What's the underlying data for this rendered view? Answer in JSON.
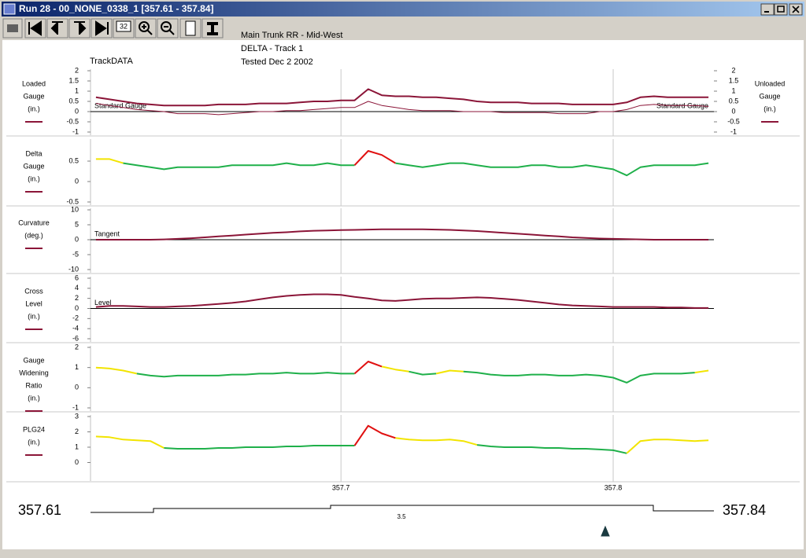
{
  "window": {
    "title": "Run 28 - 00_NONE_0338_1 [357.61 - 357.84]",
    "toolbar_label": "32"
  },
  "header": {
    "brand": "TrackDATA",
    "lines": [
      "Main Trunk RR - Mid-West",
      "DELTA - Track 1",
      "Tested Dec 2 2002"
    ]
  },
  "chart_data": [
    {
      "type": "line",
      "x": [
        357.61,
        357.615,
        357.62,
        357.625,
        357.63,
        357.635,
        357.64,
        357.645,
        357.65,
        357.655,
        357.66,
        357.665,
        357.67,
        357.675,
        357.68,
        357.685,
        357.69,
        357.695,
        357.7,
        357.705,
        357.71,
        357.715,
        357.72,
        357.725,
        357.73,
        357.735,
        357.74,
        357.745,
        357.75,
        357.755,
        357.76,
        357.765,
        357.77,
        357.775,
        357.78,
        357.785,
        357.79,
        357.795,
        357.8,
        357.805,
        357.81,
        357.815,
        357.82,
        357.825,
        357.83,
        357.835
      ],
      "xlim": [
        357.608,
        357.837
      ],
      "xticks": [
        357.7,
        357.8
      ],
      "ylim": [
        -1,
        2
      ],
      "yticks": [
        -1,
        -0.5,
        0,
        0.5,
        1,
        1.5,
        2
      ],
      "y2lim": [
        -1,
        2
      ],
      "y2ticks": [
        -1,
        -0.5,
        0,
        0.5,
        1,
        1.5,
        2
      ],
      "zero_line": true,
      "annotations": [
        "Standard Gauge",
        "Standard Gauge"
      ],
      "series": [
        {
          "name": [
            "Loaded",
            "Gauge",
            "(in.)"
          ],
          "color": "#8b1538",
          "width": 2,
          "values": [
            0.7,
            0.6,
            0.5,
            0.4,
            0.35,
            0.3,
            0.3,
            0.3,
            0.3,
            0.35,
            0.35,
            0.35,
            0.4,
            0.4,
            0.4,
            0.45,
            0.5,
            0.5,
            0.55,
            0.55,
            1.1,
            0.8,
            0.75,
            0.75,
            0.7,
            0.7,
            0.65,
            0.6,
            0.5,
            0.45,
            0.45,
            0.45,
            0.4,
            0.4,
            0.4,
            0.35,
            0.35,
            0.35,
            0.35,
            0.45,
            0.7,
            0.75,
            0.7,
            0.7,
            0.7,
            0.7
          ]
        },
        {
          "name": [
            "Unloaded",
            "Gauge",
            "(in.)"
          ],
          "color": "#8b1538",
          "width": 1,
          "axis": "y2",
          "values": [
            0.4,
            0.3,
            0.2,
            0.1,
            0.05,
            0,
            -0.1,
            -0.1,
            -0.1,
            -0.15,
            -0.1,
            -0.05,
            0,
            0,
            0.05,
            0.05,
            0.1,
            0.15,
            0.2,
            0.2,
            0.5,
            0.3,
            0.2,
            0.1,
            0.05,
            0.05,
            0.05,
            0,
            0,
            0,
            -0.05,
            -0.05,
            -0.05,
            -0.05,
            -0.1,
            -0.1,
            -0.1,
            0,
            0,
            0.1,
            0.3,
            0.35,
            0.3,
            0.3,
            0.3,
            0.25
          ]
        }
      ]
    },
    {
      "type": "line",
      "x": [
        357.61,
        357.615,
        357.62,
        357.625,
        357.63,
        357.635,
        357.64,
        357.645,
        357.65,
        357.655,
        357.66,
        357.665,
        357.67,
        357.675,
        357.68,
        357.685,
        357.69,
        357.695,
        357.7,
        357.705,
        357.71,
        357.715,
        357.72,
        357.725,
        357.73,
        357.735,
        357.74,
        357.745,
        357.75,
        357.755,
        357.76,
        357.765,
        357.77,
        357.775,
        357.78,
        357.785,
        357.79,
        357.795,
        357.8,
        357.805,
        357.81,
        357.815,
        357.82,
        357.825,
        357.83,
        357.835
      ],
      "xlim": [
        357.608,
        357.837
      ],
      "xticks": [
        357.7,
        357.8
      ],
      "ylim": [
        -0.5,
        1
      ],
      "yticks": [
        -0.5,
        0,
        0.5
      ],
      "color_bands": [
        {
          "below": 0.5,
          "color": "#1fb04a"
        },
        {
          "below": 0.6,
          "color": "#f2e400"
        },
        {
          "color": "#e01010"
        }
      ],
      "series": [
        {
          "name": [
            "Delta",
            "Gauge",
            "(in.)"
          ],
          "color": "#8b1538",
          "width": 2,
          "values": [
            0.55,
            0.55,
            0.45,
            0.4,
            0.35,
            0.3,
            0.35,
            0.35,
            0.35,
            0.35,
            0.4,
            0.4,
            0.4,
            0.4,
            0.45,
            0.4,
            0.4,
            0.45,
            0.4,
            0.4,
            0.75,
            0.65,
            0.45,
            0.4,
            0.35,
            0.4,
            0.45,
            0.45,
            0.4,
            0.35,
            0.35,
            0.35,
            0.4,
            0.4,
            0.35,
            0.35,
            0.4,
            0.35,
            0.3,
            0.15,
            0.35,
            0.4,
            0.4,
            0.4,
            0.4,
            0.45
          ]
        }
      ]
    },
    {
      "type": "line",
      "x": [
        357.61,
        357.615,
        357.62,
        357.625,
        357.63,
        357.635,
        357.64,
        357.645,
        357.65,
        357.655,
        357.66,
        357.665,
        357.67,
        357.675,
        357.68,
        357.685,
        357.69,
        357.695,
        357.7,
        357.705,
        357.71,
        357.715,
        357.72,
        357.725,
        357.73,
        357.735,
        357.74,
        357.745,
        357.75,
        357.755,
        357.76,
        357.765,
        357.77,
        357.775,
        357.78,
        357.785,
        357.79,
        357.795,
        357.8,
        357.805,
        357.81,
        357.815,
        357.82,
        357.825,
        357.83,
        357.835
      ],
      "xlim": [
        357.608,
        357.837
      ],
      "xticks": [
        357.7,
        357.8
      ],
      "ylim": [
        -10,
        10
      ],
      "yticks": [
        -10,
        -5,
        0,
        5,
        10
      ],
      "zero_line": true,
      "annotations": [
        "Tangent"
      ],
      "series": [
        {
          "name": [
            "Curvature",
            "(deg.)"
          ],
          "color": "#8b1538",
          "width": 2,
          "values": [
            0,
            0,
            0,
            0,
            0,
            0.1,
            0.3,
            0.5,
            0.8,
            1.1,
            1.4,
            1.7,
            2,
            2.3,
            2.5,
            2.8,
            3,
            3.1,
            3.2,
            3.3,
            3.4,
            3.5,
            3.5,
            3.5,
            3.5,
            3.4,
            3.3,
            3.1,
            2.9,
            2.6,
            2.3,
            2,
            1.7,
            1.4,
            1.1,
            0.8,
            0.6,
            0.4,
            0.3,
            0.2,
            0.1,
            0,
            0,
            0,
            0,
            0
          ]
        }
      ]
    },
    {
      "type": "line",
      "x": [
        357.61,
        357.615,
        357.62,
        357.625,
        357.63,
        357.635,
        357.64,
        357.645,
        357.65,
        357.655,
        357.66,
        357.665,
        357.67,
        357.675,
        357.68,
        357.685,
        357.69,
        357.695,
        357.7,
        357.705,
        357.71,
        357.715,
        357.72,
        357.725,
        357.73,
        357.735,
        357.74,
        357.745,
        357.75,
        357.755,
        357.76,
        357.765,
        357.77,
        357.775,
        357.78,
        357.785,
        357.79,
        357.795,
        357.8,
        357.805,
        357.81,
        357.815,
        357.82,
        357.825,
        357.83,
        357.835
      ],
      "xlim": [
        357.608,
        357.837
      ],
      "xticks": [
        357.7,
        357.8
      ],
      "ylim": [
        -6,
        6
      ],
      "yticks": [
        -6,
        -4,
        -2,
        0,
        2,
        4,
        6
      ],
      "zero_line": true,
      "annotations": [
        "Level"
      ],
      "series": [
        {
          "name": [
            "Cross",
            "Level",
            "(in.)"
          ],
          "color": "#8b1538",
          "width": 2,
          "values": [
            0.3,
            0.5,
            0.5,
            0.4,
            0.3,
            0.3,
            0.4,
            0.5,
            0.7,
            0.9,
            1.1,
            1.4,
            1.8,
            2.2,
            2.5,
            2.7,
            2.8,
            2.8,
            2.7,
            2.3,
            2,
            1.6,
            1.5,
            1.7,
            1.9,
            2,
            2,
            2.1,
            2.2,
            2.1,
            1.9,
            1.7,
            1.4,
            1.1,
            0.8,
            0.6,
            0.5,
            0.4,
            0.3,
            0.3,
            0.3,
            0.3,
            0.2,
            0.2,
            0.1,
            0.1
          ]
        }
      ]
    },
    {
      "type": "line",
      "x": [
        357.61,
        357.615,
        357.62,
        357.625,
        357.63,
        357.635,
        357.64,
        357.645,
        357.65,
        357.655,
        357.66,
        357.665,
        357.67,
        357.675,
        357.68,
        357.685,
        357.69,
        357.695,
        357.7,
        357.705,
        357.71,
        357.715,
        357.72,
        357.725,
        357.73,
        357.735,
        357.74,
        357.745,
        357.75,
        357.755,
        357.76,
        357.765,
        357.77,
        357.775,
        357.78,
        357.785,
        357.79,
        357.795,
        357.8,
        357.805,
        357.81,
        357.815,
        357.82,
        357.825,
        357.83,
        357.835
      ],
      "xlim": [
        357.608,
        357.837
      ],
      "xticks": [
        357.7,
        357.8
      ],
      "ylim": [
        -1,
        2
      ],
      "yticks": [
        -1,
        0,
        1,
        2
      ],
      "color_bands": [
        {
          "below": 0.85,
          "color": "#1fb04a"
        },
        {
          "below": 1.1,
          "color": "#f2e400"
        },
        {
          "color": "#e01010"
        }
      ],
      "series": [
        {
          "name": [
            "Gauge",
            "Widening",
            "Ratio",
            "(in.)"
          ],
          "color": "#8b1538",
          "width": 2,
          "values": [
            1,
            0.95,
            0.85,
            0.7,
            0.6,
            0.55,
            0.6,
            0.6,
            0.6,
            0.6,
            0.65,
            0.65,
            0.7,
            0.7,
            0.75,
            0.7,
            0.7,
            0.75,
            0.7,
            0.7,
            1.3,
            1.05,
            0.9,
            0.8,
            0.65,
            0.7,
            0.85,
            0.8,
            0.75,
            0.65,
            0.6,
            0.6,
            0.65,
            0.65,
            0.6,
            0.6,
            0.65,
            0.6,
            0.5,
            0.25,
            0.6,
            0.7,
            0.7,
            0.7,
            0.75,
            0.85
          ]
        }
      ]
    },
    {
      "type": "line",
      "x": [
        357.61,
        357.615,
        357.62,
        357.625,
        357.63,
        357.635,
        357.64,
        357.645,
        357.65,
        357.655,
        357.66,
        357.665,
        357.67,
        357.675,
        357.68,
        357.685,
        357.69,
        357.695,
        357.7,
        357.705,
        357.71,
        357.715,
        357.72,
        357.725,
        357.73,
        357.735,
        357.74,
        357.745,
        357.75,
        357.755,
        357.76,
        357.765,
        357.77,
        357.775,
        357.78,
        357.785,
        357.79,
        357.795,
        357.8,
        357.805,
        357.81,
        357.815,
        357.82,
        357.825,
        357.83,
        357.835
      ],
      "xlim": [
        357.608,
        357.837
      ],
      "xticks": [
        357.7,
        357.8
      ],
      "ylim": [
        -1,
        3
      ],
      "yticks": [
        0,
        1,
        2,
        3
      ],
      "color_bands": [
        {
          "below": 1.3,
          "color": "#1fb04a"
        },
        {
          "below": 1.9,
          "color": "#f2e400"
        },
        {
          "color": "#e01010"
        }
      ],
      "series": [
        {
          "name": [
            "PLG24",
            "(in.)"
          ],
          "color": "#8b1538",
          "width": 2,
          "values": [
            1.7,
            1.65,
            1.5,
            1.45,
            1.4,
            0.95,
            0.9,
            0.9,
            0.9,
            0.95,
            0.95,
            1,
            1,
            1,
            1.05,
            1.05,
            1.1,
            1.1,
            1.1,
            1.1,
            2.4,
            1.9,
            1.6,
            1.5,
            1.45,
            1.45,
            1.5,
            1.4,
            1.15,
            1.05,
            1,
            1,
            1,
            0.95,
            0.95,
            0.9,
            0.9,
            0.85,
            0.8,
            0.6,
            1.4,
            1.5,
            1.5,
            1.45,
            1.4,
            1.45
          ]
        }
      ]
    }
  ],
  "footer": {
    "start": "357.61",
    "end": "357.84",
    "profile_label": "3.5"
  }
}
